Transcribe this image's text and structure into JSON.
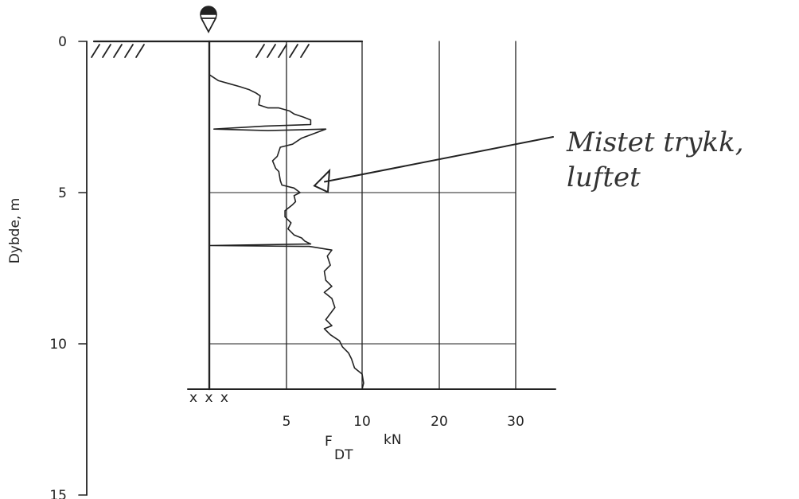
{
  "chart_data": {
    "type": "line",
    "ylabel": "Dybde, m",
    "y_ticks": [
      "0",
      "5",
      "10",
      "15"
    ],
    "ylim": [
      0,
      15
    ],
    "x_ticks": [
      "5",
      "10",
      "20",
      "30"
    ],
    "xlabel_main": "F",
    "xlabel_sub": "DT",
    "xlabel_unit": "kN",
    "xlim_note": "x scale: 0–10 kN linear, 10–30 kN compressed",
    "xscale_breaks": [
      0,
      5,
      10,
      20,
      30
    ],
    "annotation_lines": [
      "Mistet trykk,",
      "luftet"
    ],
    "annotation_depth": 4.8,
    "end_marks": "x x x",
    "end_depth": 11.5,
    "grid_depths": [
      5,
      10
    ],
    "series": [
      {
        "points": [
          [
            0.0,
            1.1
          ],
          [
            0.6,
            1.3
          ],
          [
            1.3,
            1.4
          ],
          [
            2.0,
            1.5
          ],
          [
            2.6,
            1.6
          ],
          [
            3.0,
            1.7
          ],
          [
            3.3,
            1.8
          ],
          [
            3.2,
            2.1
          ],
          [
            3.8,
            2.2
          ],
          [
            4.5,
            2.2
          ],
          [
            5.2,
            2.3
          ],
          [
            5.5,
            2.4
          ],
          [
            6.1,
            2.5
          ],
          [
            6.6,
            2.6
          ],
          [
            6.6,
            2.75
          ],
          [
            3.6,
            2.8
          ],
          [
            0.3,
            2.9
          ],
          [
            3.8,
            2.95
          ],
          [
            7.6,
            2.9
          ],
          [
            6.0,
            3.2
          ],
          [
            5.4,
            3.4
          ],
          [
            4.6,
            3.5
          ],
          [
            4.4,
            3.8
          ],
          [
            4.1,
            3.95
          ],
          [
            4.3,
            4.2
          ],
          [
            4.5,
            4.3
          ],
          [
            4.6,
            4.6
          ],
          [
            4.7,
            4.75
          ],
          [
            5.5,
            4.85
          ],
          [
            5.9,
            5.0
          ],
          [
            5.5,
            5.1
          ],
          [
            5.6,
            5.3
          ],
          [
            5.4,
            5.4
          ],
          [
            4.9,
            5.6
          ],
          [
            4.9,
            5.8
          ],
          [
            5.3,
            6.0
          ],
          [
            5.1,
            6.2
          ],
          [
            5.5,
            6.4
          ],
          [
            6.0,
            6.5
          ],
          [
            6.2,
            6.6
          ],
          [
            6.6,
            6.7
          ],
          [
            0.0,
            6.75
          ],
          [
            6.5,
            6.78
          ],
          [
            8.0,
            6.9
          ],
          [
            7.7,
            7.1
          ],
          [
            7.9,
            7.4
          ],
          [
            7.5,
            7.6
          ],
          [
            7.6,
            7.9
          ],
          [
            8.0,
            8.1
          ],
          [
            7.5,
            8.3
          ],
          [
            8.0,
            8.5
          ],
          [
            8.2,
            8.8
          ],
          [
            7.9,
            9.0
          ],
          [
            7.6,
            9.2
          ],
          [
            8.0,
            9.4
          ],
          [
            7.5,
            9.5
          ],
          [
            7.9,
            9.7
          ],
          [
            8.5,
            9.9
          ],
          [
            8.7,
            10.1
          ],
          [
            9.1,
            10.3
          ],
          [
            9.3,
            10.5
          ],
          [
            9.5,
            10.8
          ],
          [
            10.0,
            11.0
          ],
          [
            10.2,
            11.3
          ],
          [
            10.0,
            11.5
          ]
        ]
      }
    ]
  }
}
